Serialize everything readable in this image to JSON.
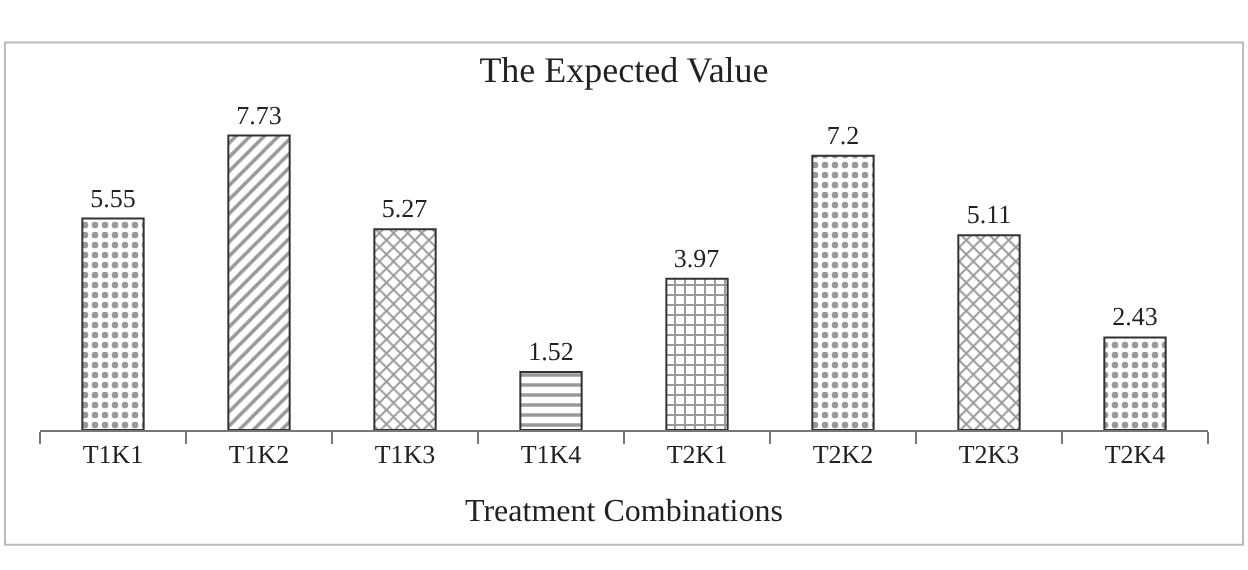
{
  "chart_data": {
    "type": "bar",
    "title": "The Expected Value",
    "xlabel": "Treatment Combinations",
    "categories": [
      "T1K1",
      "T1K2",
      "T1K3",
      "T1K4",
      "T2K1",
      "T2K2",
      "T2K3",
      "T2K4"
    ],
    "values": [
      5.55,
      7.73,
      5.27,
      1.52,
      3.97,
      7.2,
      5.11,
      2.43
    ],
    "color": "#333333",
    "data_labels": true
  }
}
